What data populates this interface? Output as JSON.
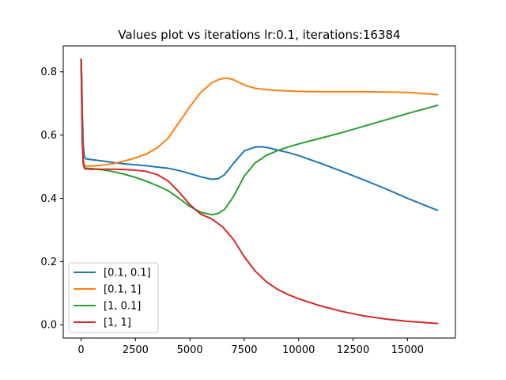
{
  "chart_data": {
    "type": "line",
    "title": "Values plot vs iterations lr:0.1, iterations:16384",
    "xlabel": "",
    "ylabel": "",
    "xlim": [
      -820,
      17204
    ],
    "ylim": [
      -0.042,
      0.882
    ],
    "xticks": [
      0,
      2500,
      5000,
      7500,
      10000,
      12500,
      15000
    ],
    "xtick_labels": [
      "0",
      "2500",
      "5000",
      "7500",
      "10000",
      "12500",
      "15000"
    ],
    "yticks": [
      0.0,
      0.2,
      0.4,
      0.6,
      0.8
    ],
    "ytick_labels": [
      "0.0",
      "0.2",
      "0.4",
      "0.6",
      "0.8"
    ],
    "grid": false,
    "legend_position": "lower-left",
    "series": [
      {
        "name": "[0.1, 0.1]",
        "color": "#1f77b4",
        "x": [
          0,
          30,
          60,
          100,
          150,
          200,
          500,
          1000,
          1500,
          2000,
          2500,
          3000,
          3500,
          4000,
          4500,
          5000,
          5500,
          6000,
          6300,
          6600,
          7000,
          7500,
          8000,
          8300,
          8600,
          9000,
          9500,
          10000,
          11000,
          12000,
          13000,
          14000,
          15000,
          16384
        ],
        "y": [
          0.84,
          0.78,
          0.66,
          0.57,
          0.535,
          0.525,
          0.522,
          0.518,
          0.513,
          0.509,
          0.506,
          0.503,
          0.499,
          0.495,
          0.488,
          0.478,
          0.468,
          0.46,
          0.462,
          0.475,
          0.51,
          0.55,
          0.562,
          0.563,
          0.56,
          0.553,
          0.545,
          0.535,
          0.511,
          0.485,
          0.458,
          0.43,
          0.4,
          0.362
        ]
      },
      {
        "name": "[0.1, 1]",
        "color": "#ff7f0e",
        "x": [
          0,
          30,
          60,
          100,
          150,
          200,
          500,
          1000,
          1500,
          2000,
          2500,
          3000,
          3500,
          4000,
          4500,
          5000,
          5500,
          6000,
          6300,
          6600,
          6800,
          7000,
          7300,
          7600,
          8000,
          8500,
          9000,
          10000,
          11000,
          12000,
          13000,
          14000,
          15000,
          16384
        ],
        "y": [
          0.84,
          0.74,
          0.6,
          0.52,
          0.505,
          0.502,
          0.502,
          0.505,
          0.51,
          0.518,
          0.528,
          0.54,
          0.56,
          0.59,
          0.64,
          0.69,
          0.735,
          0.765,
          0.775,
          0.78,
          0.779,
          0.775,
          0.765,
          0.756,
          0.748,
          0.744,
          0.741,
          0.738,
          0.737,
          0.737,
          0.737,
          0.736,
          0.735,
          0.728
        ]
      },
      {
        "name": "[1, 0.1]",
        "color": "#2ca02c",
        "x": [
          0,
          30,
          60,
          100,
          150,
          200,
          500,
          1000,
          1500,
          2000,
          2500,
          3000,
          3500,
          4000,
          4500,
          5000,
          5500,
          6000,
          6300,
          6600,
          7000,
          7500,
          8000,
          8500,
          9000,
          9500,
          10000,
          11000,
          12000,
          13000,
          14000,
          15000,
          16384
        ],
        "y": [
          0.83,
          0.7,
          0.57,
          0.51,
          0.498,
          0.495,
          0.494,
          0.49,
          0.484,
          0.476,
          0.466,
          0.454,
          0.44,
          0.424,
          0.4,
          0.374,
          0.356,
          0.348,
          0.352,
          0.365,
          0.405,
          0.47,
          0.512,
          0.535,
          0.55,
          0.562,
          0.572,
          0.59,
          0.608,
          0.628,
          0.648,
          0.668,
          0.694
        ]
      },
      {
        "name": "[1, 1]",
        "color": "#d62728",
        "x": [
          0,
          30,
          60,
          100,
          150,
          200,
          500,
          1000,
          1500,
          2000,
          2500,
          3000,
          3500,
          4000,
          4500,
          5000,
          5500,
          6000,
          6500,
          7000,
          7500,
          8000,
          8500,
          9000,
          9500,
          10000,
          11000,
          12000,
          13000,
          14000,
          15000,
          16384
        ],
        "y": [
          0.84,
          0.72,
          0.58,
          0.51,
          0.495,
          0.493,
          0.492,
          0.492,
          0.492,
          0.491,
          0.489,
          0.485,
          0.475,
          0.455,
          0.42,
          0.38,
          0.35,
          0.335,
          0.31,
          0.27,
          0.215,
          0.17,
          0.137,
          0.113,
          0.096,
          0.082,
          0.06,
          0.042,
          0.028,
          0.018,
          0.011,
          0.004
        ]
      }
    ]
  }
}
